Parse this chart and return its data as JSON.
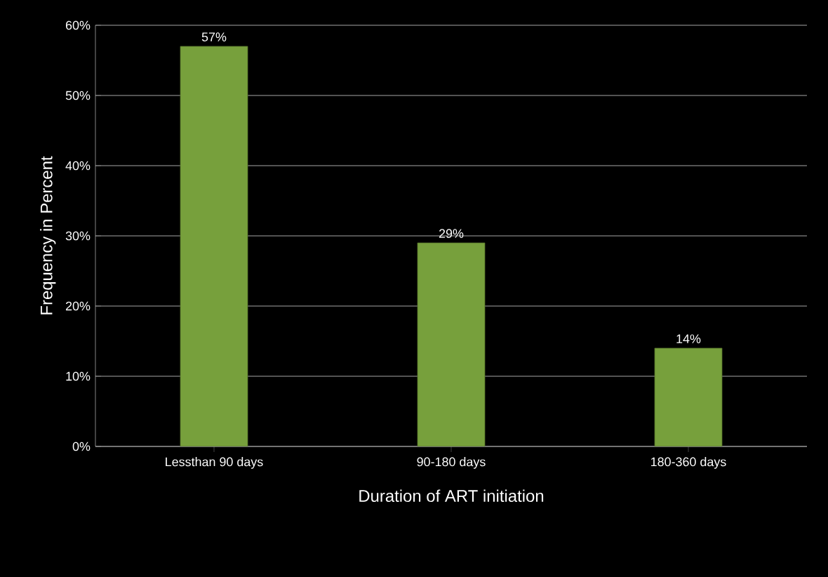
{
  "chart_data": {
    "type": "bar",
    "xlabel": "Duration of ART initiation",
    "ylabel": "Frequency in Percent",
    "categories": [
      "Lessthan 90 days",
      "90-180 days",
      "180-360 days"
    ],
    "values": [
      57,
      29,
      14
    ],
    "color": "#77a03c",
    "value_labels": [
      "57%",
      "29%",
      "14%"
    ],
    "ylim": [
      0,
      60
    ],
    "yticks": [
      {
        "value": 0,
        "label": "0%"
      },
      {
        "value": 10,
        "label": "10%"
      },
      {
        "value": 20,
        "label": "20%"
      },
      {
        "value": 30,
        "label": "30%"
      },
      {
        "value": 40,
        "label": "40%"
      },
      {
        "value": 50,
        "label": "50%"
      },
      {
        "value": 60,
        "label": "60%"
      }
    ],
    "grid": "y"
  }
}
